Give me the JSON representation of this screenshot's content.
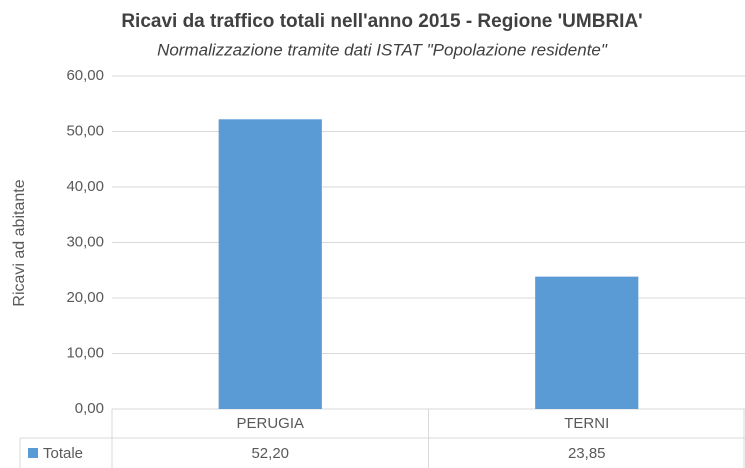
{
  "chart_data": {
    "type": "bar",
    "title": "Ricavi da traffico totali nell'anno 2015 - Regione 'UMBRIA'",
    "subtitle": "Normalizzazione tramite dati ISTAT \"Popolazione residente\"",
    "y_label": "Ricavi ad abitante",
    "categories": [
      "PERUGIA",
      "TERNI"
    ],
    "series": [
      {
        "name": "Totale",
        "color": "#5b9bd5",
        "values": [
          52.2,
          23.85
        ],
        "value_labels": [
          "52,20",
          "23,85"
        ]
      }
    ],
    "ylim": [
      0,
      60
    ],
    "yticks": [
      {
        "value": 0,
        "label": "0,00"
      },
      {
        "value": 10,
        "label": "10,00"
      },
      {
        "value": 20,
        "label": "20,00"
      },
      {
        "value": 30,
        "label": "30,00"
      },
      {
        "value": 40,
        "label": "40,00"
      },
      {
        "value": 50,
        "label": "50,00"
      },
      {
        "value": 60,
        "label": "60,00"
      }
    ],
    "grid": true
  }
}
